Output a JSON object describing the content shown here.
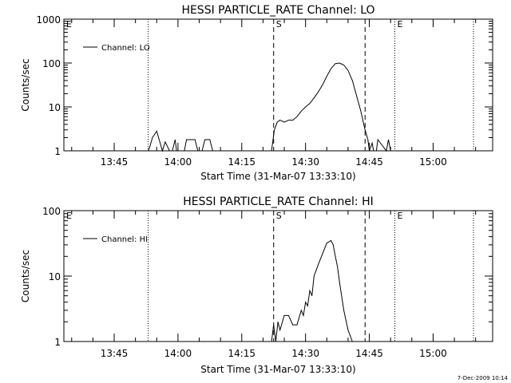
{
  "footer": "7-Dec-2009 10:14",
  "chart_data": [
    {
      "type": "line",
      "title": "HESSI PARTICLE_RATE Channel: LO",
      "xlabel": "Start Time (31-Mar-07 13:33:10)",
      "ylabel": "Counts/sec",
      "y_scale": "log",
      "xlim": [
        "13:33:10",
        "15:14:00"
      ],
      "ylim": [
        1,
        1000
      ],
      "x_ticks": [
        "13:45",
        "14:00",
        "14:15",
        "14:30",
        "14:45",
        "15:00"
      ],
      "y_ticks": [
        "1",
        "10",
        "100",
        "1000"
      ],
      "legend": {
        "position": "top-left",
        "entries": [
          "Channel: LO"
        ]
      },
      "markers": [
        {
          "label": "E",
          "time": "13:33:10",
          "style": "dotted",
          "line": false
        },
        {
          "label": "",
          "time": "13:53:00",
          "style": "dotted",
          "line": true
        },
        {
          "label": "S",
          "time": "14:22:30",
          "style": "dashed",
          "line": true
        },
        {
          "label": "",
          "time": "14:44:00",
          "style": "dashed",
          "line": true
        },
        {
          "label": "E",
          "time": "14:51:00",
          "style": "dotted",
          "line": true
        },
        {
          "label": "",
          "time": "15:09:30",
          "style": "dotted",
          "line": true
        }
      ],
      "series": [
        {
          "name": "Channel: LO",
          "x": [
            "13:53:00",
            "13:53:20",
            "13:54:00",
            "13:55:00",
            "13:56:20",
            "13:57:00",
            "13:58:00",
            "13:58:40",
            "13:59:20",
            "13:59:40",
            "14:01:30",
            "14:02:00",
            "14:03:00",
            "14:04:00",
            "14:04:40",
            "14:05:40",
            "14:06:20",
            "14:07:00",
            "14:07:30",
            "14:08:10",
            "14:22:00",
            "14:22:40",
            "14:23:20",
            "14:24:00",
            "14:25:00",
            "14:26:00",
            "14:27:00",
            "14:28:00",
            "14:29:00",
            "14:30:00",
            "14:31:00",
            "14:32:00",
            "14:33:00",
            "14:34:00",
            "14:35:00",
            "14:36:00",
            "14:37:00",
            "14:38:00",
            "14:39:00",
            "14:40:00",
            "14:41:00",
            "14:42:00",
            "14:43:00",
            "14:44:00",
            "14:44:40",
            "14:45:00",
            "14:45:40",
            "14:46:00",
            "14:46:40",
            "14:47:00",
            "14:49:00",
            "14:49:30",
            "14:50:00",
            "14:51:00"
          ],
          "y": [
            1,
            1.2,
            2,
            2.8,
            1,
            1.6,
            1,
            1,
            1.8,
            1,
            1,
            1.8,
            1.8,
            1.8,
            1,
            1,
            1.8,
            1.8,
            1.8,
            1,
            1,
            3,
            4.5,
            5,
            4.5,
            5,
            5,
            6,
            8,
            10,
            12,
            16,
            22,
            32,
            50,
            75,
            97,
            100,
            90,
            68,
            40,
            18,
            8,
            3,
            1.8,
            1,
            1.5,
            1,
            1,
            1.8,
            1,
            1.8,
            1,
            1
          ]
        }
      ]
    },
    {
      "type": "line",
      "title": "HESSI PARTICLE_RATE Channel: HI",
      "xlabel": "Start Time (31-Mar-07 13:33:10)",
      "ylabel": "Counts/sec",
      "y_scale": "log",
      "xlim": [
        "13:33:10",
        "15:14:00"
      ],
      "ylim": [
        1,
        100
      ],
      "x_ticks": [
        "13:45",
        "14:00",
        "14:15",
        "14:30",
        "14:45",
        "15:00"
      ],
      "y_ticks": [
        "1",
        "10",
        "100"
      ],
      "legend": {
        "position": "top-left",
        "entries": [
          "Channel: HI"
        ]
      },
      "markers": [
        {
          "label": "E",
          "time": "13:33:10",
          "style": "dotted",
          "line": false
        },
        {
          "label": "",
          "time": "13:53:00",
          "style": "dotted",
          "line": true
        },
        {
          "label": "S",
          "time": "14:22:30",
          "style": "dashed",
          "line": true
        },
        {
          "label": "",
          "time": "14:44:00",
          "style": "dashed",
          "line": true
        },
        {
          "label": "E",
          "time": "14:51:00",
          "style": "dotted",
          "line": true
        },
        {
          "label": "",
          "time": "15:09:30",
          "style": "dotted",
          "line": true
        }
      ],
      "series": [
        {
          "name": "Channel: HI",
          "x": [
            "14:22:00",
            "14:22:30",
            "14:23:00",
            "14:23:30",
            "14:24:00",
            "14:25:00",
            "14:26:00",
            "14:27:00",
            "14:28:00",
            "14:29:00",
            "14:29:30",
            "14:30:00",
            "14:30:30",
            "14:31:00",
            "14:31:30",
            "14:32:00",
            "14:33:00",
            "14:34:00",
            "14:35:00",
            "14:36:00",
            "14:36:30",
            "14:37:00",
            "14:37:30",
            "14:38:00",
            "14:39:00",
            "14:40:00",
            "14:41:00"
          ],
          "y": [
            1,
            1.8,
            1,
            2,
            1.5,
            2.5,
            2.5,
            1.8,
            1.8,
            3,
            2.5,
            4,
            3.5,
            6,
            5,
            10,
            15,
            22,
            32,
            35,
            30,
            20,
            14,
            8,
            3,
            1.5,
            1
          ]
        }
      ]
    }
  ]
}
